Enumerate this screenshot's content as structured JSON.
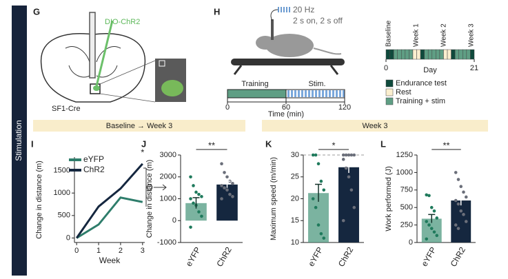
{
  "side_label": "Stimulation",
  "panel_g": {
    "letter": "G",
    "virus": "DIO-ChR2",
    "mouse": "SF1-Cre"
  },
  "panel_h": {
    "letter": "H",
    "frequency": "20 Hz",
    "pattern": "2 s on, 2 s off",
    "training": "Training",
    "stim": "Stim.",
    "time_axis": {
      "xlim": [
        0,
        120
      ],
      "xticks": [
        0,
        60,
        120
      ],
      "label": "Time (min)"
    },
    "schedule": {
      "xlim": [
        0,
        21
      ],
      "xticks": [
        0,
        21
      ],
      "label": "Day",
      "marks": [
        "Baseline",
        "Week 1",
        "Week 2",
        "Week 3"
      ],
      "legend": [
        {
          "name": "Endurance test",
          "color": "#0f4a3c"
        },
        {
          "name": "Rest",
          "color": "#fbefcf"
        },
        {
          "name": "Training + stim",
          "color": "#5f9e84"
        }
      ]
    }
  },
  "headers": [
    "Baseline → Week 3",
    "Week 3"
  ],
  "chart_data": [
    {
      "type": "line",
      "panel": "I",
      "x": [
        0,
        1,
        2,
        3
      ],
      "xlim": [
        -0.1,
        3.1
      ],
      "xticks": [
        0,
        1,
        2,
        3
      ],
      "xlabel": "Week",
      "ylabel": "Change in distance (m)",
      "ylim": [
        -100,
        1800
      ],
      "yticks": [
        0,
        500,
        1000,
        1500
      ],
      "annotation": "*",
      "legend": "upper left",
      "series": [
        {
          "name": "eYFP",
          "color": "#2e7d6b",
          "values": [
            0,
            300,
            900,
            800
          ]
        },
        {
          "name": "ChR2",
          "color": "#15273f",
          "values": [
            0,
            700,
            1100,
            1650
          ]
        }
      ]
    },
    {
      "type": "bar",
      "panel": "J",
      "categories": [
        "eYFP",
        "ChR2"
      ],
      "colors": [
        "#4f9a80",
        "#15273f"
      ],
      "values": [
        800,
        1650
      ],
      "errors": [
        250,
        150
      ],
      "ylabel": "Change in distance (m)",
      "ylim": [
        -1000,
        3000
      ],
      "yticks": [
        -1000,
        0,
        1000,
        2000,
        3000
      ],
      "annotation": "**",
      "points": [
        [
          2000,
          1600,
          1300,
          1200,
          1100,
          1000,
          800,
          700,
          400,
          200,
          -300
        ],
        [
          2600,
          2200,
          2000,
          1800,
          1700,
          1600,
          1500,
          1400,
          1200,
          1100,
          1000
        ]
      ]
    },
    {
      "type": "bar",
      "panel": "K",
      "categories": [
        "eYFP",
        "ChR2"
      ],
      "colors": [
        "#4f9a80",
        "#15273f"
      ],
      "values": [
        21.3,
        27.2
      ],
      "errors": [
        2,
        1.3
      ],
      "ylabel": "Maximum speed (m/min)",
      "ylim": [
        10,
        30
      ],
      "yticks": [
        10,
        15,
        20,
        25,
        30
      ],
      "annotation": "*",
      "ref_line": 30,
      "points": [
        [
          30,
          30,
          28,
          24,
          22,
          20,
          18,
          14,
          12,
          11
        ],
        [
          30,
          30,
          30,
          30,
          30,
          29,
          27,
          25,
          22,
          18,
          15
        ]
      ]
    },
    {
      "type": "bar",
      "panel": "L",
      "categories": [
        "eYFP",
        "ChR2"
      ],
      "colors": [
        "#4f9a80",
        "#15273f"
      ],
      "values": [
        340,
        600
      ],
      "errors": [
        60,
        70
      ],
      "ylabel": "Work performed (J)",
      "ylim": [
        0,
        1250
      ],
      "yticks": [
        0,
        250,
        500,
        750,
        1000,
        1250
      ],
      "annotation": "**",
      "points": [
        [
          680,
          670,
          500,
          450,
          350,
          300,
          250,
          200,
          150,
          100,
          50
        ],
        [
          1000,
          900,
          800,
          720,
          650,
          600,
          550,
          450,
          400,
          300,
          250,
          200
        ]
      ]
    }
  ]
}
